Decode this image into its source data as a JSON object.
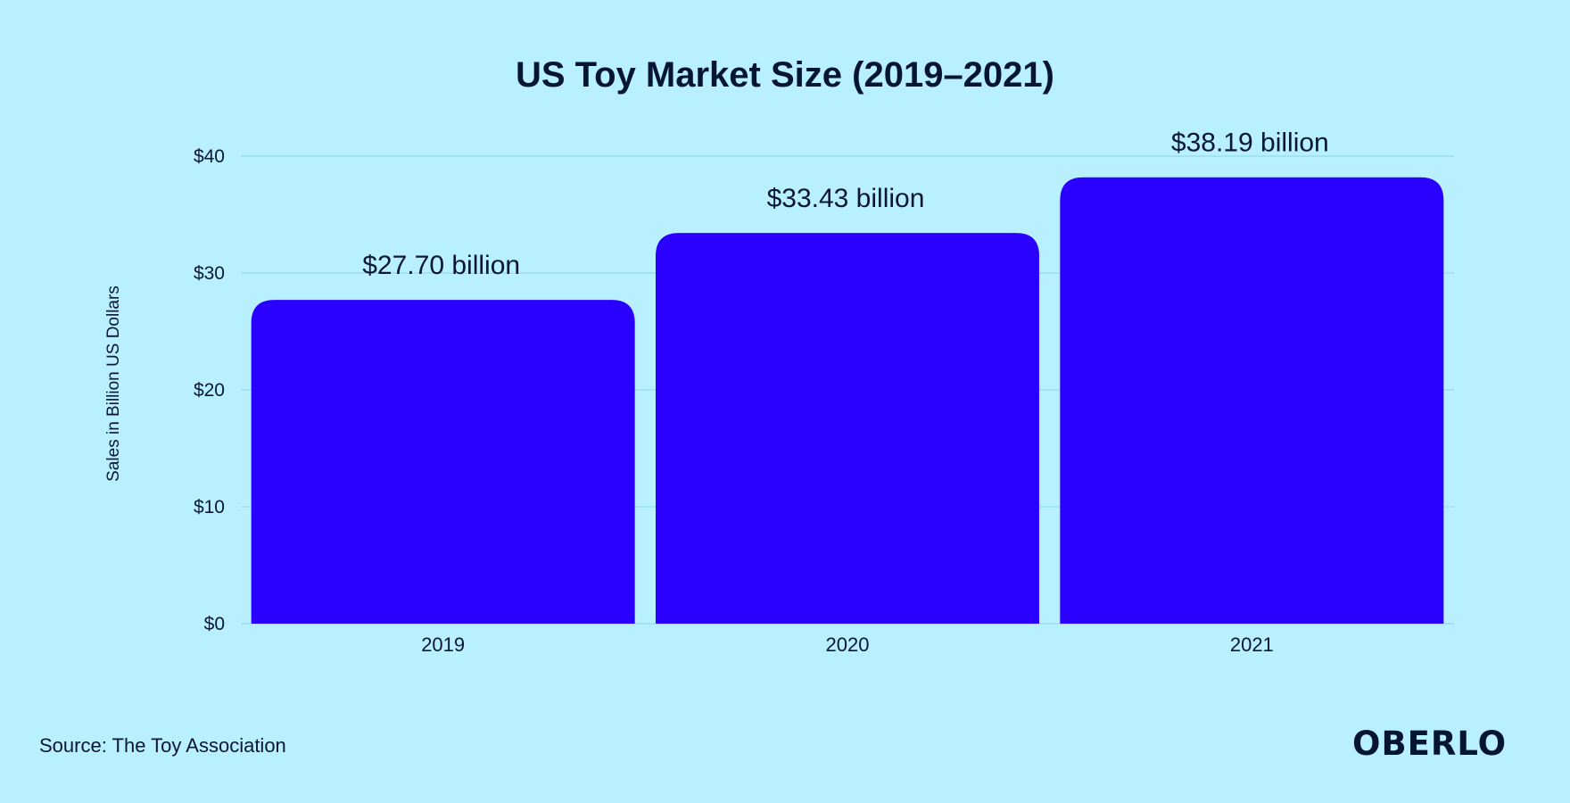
{
  "chart_data": {
    "type": "bar",
    "title": "US Toy Market Size (2019–2021)",
    "ylabel": "Sales in Billion US Dollars",
    "xlabel": "",
    "categories": [
      "2019",
      "2020",
      "2021"
    ],
    "values": [
      27.7,
      33.43,
      38.19
    ],
    "data_labels": [
      "$27.70 billion",
      "$33.43 billion",
      "$38.19 billion"
    ],
    "ylim": [
      0,
      40
    ],
    "yticks": [
      0,
      10,
      20,
      30,
      40
    ],
    "ytick_labels": [
      "$0",
      "$10",
      "$20",
      "$30",
      "$40"
    ],
    "grid": true,
    "legend": "none",
    "bar_color": "#2a00ff"
  },
  "footer": {
    "source": "Source: The Toy Association",
    "brand": "OBERLO"
  },
  "colors": {
    "background": "#b8f0ff",
    "gridline": "#8ed3e2",
    "text": "#0a1633"
  }
}
